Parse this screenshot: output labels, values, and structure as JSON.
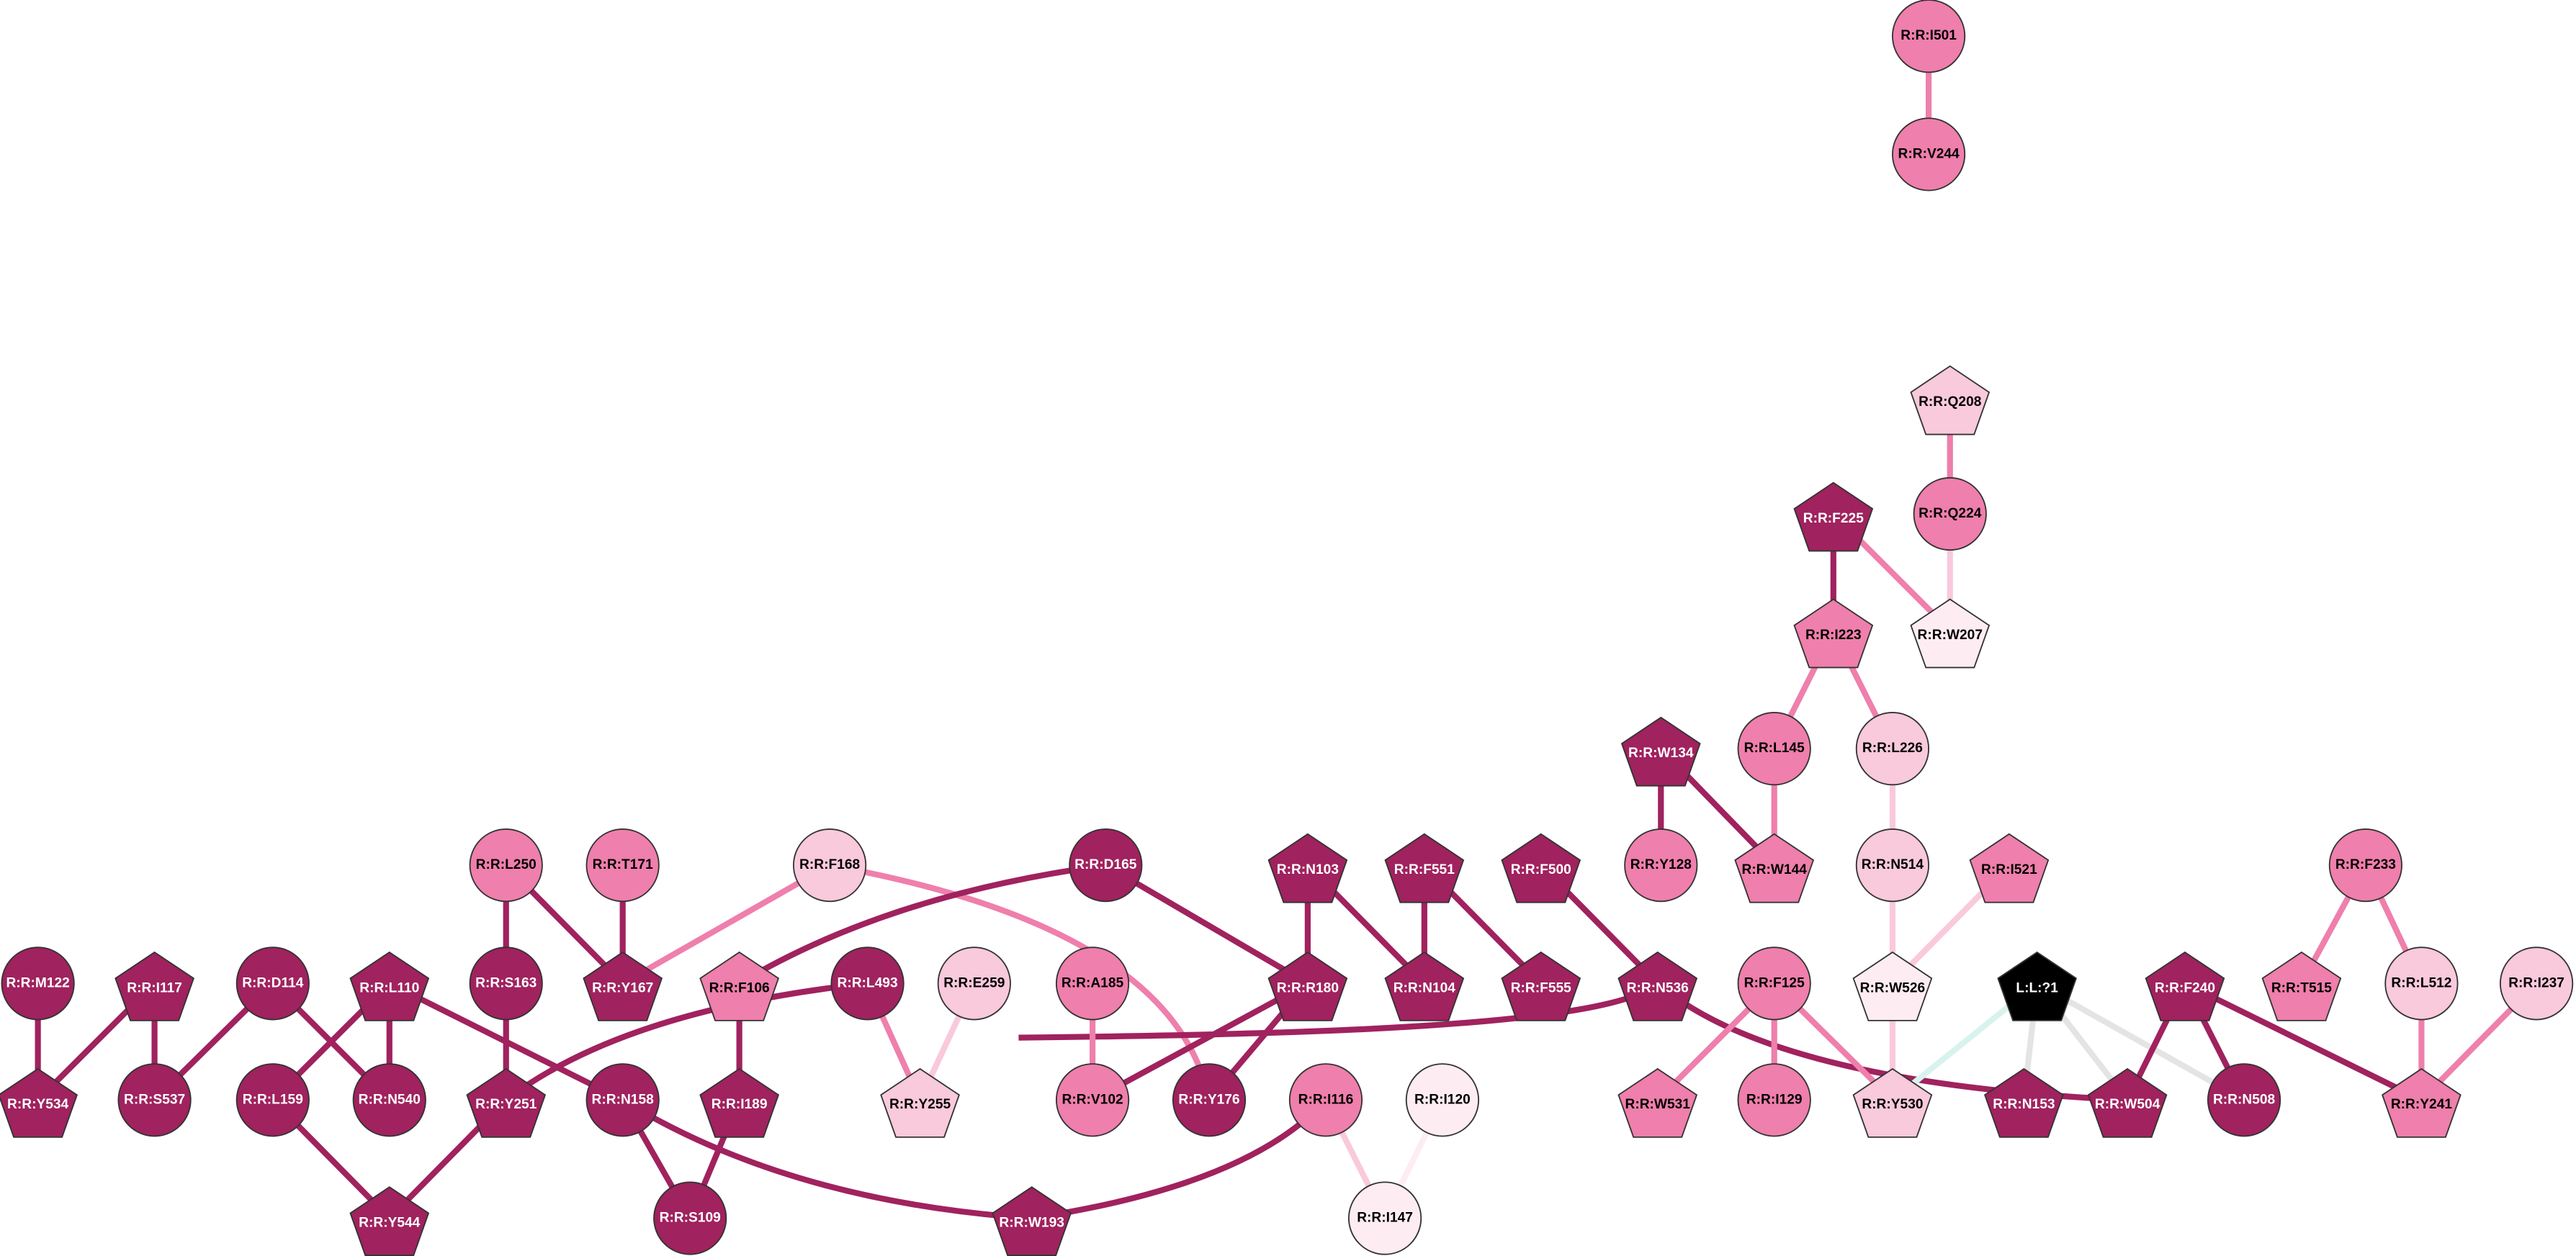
{
  "nodes": [
    "R:R:I501",
    "R:R:V244",
    "R:R:Q208",
    "R:R:Q224",
    "R:R:F225",
    "R:R:W207",
    "R:R:I223",
    "R:R:W134",
    "R:R:L145",
    "R:R:L226",
    "R:R:Y128",
    "R:R:W144",
    "R:R:N514",
    "R:R:I521",
    "R:R:L250",
    "R:R:T171",
    "R:R:F168",
    "R:R:D165",
    "R:R:N103",
    "R:R:F551",
    "R:R:F500",
    "R:R:F233",
    "R:R:M122",
    "R:R:I117",
    "R:R:D114",
    "R:R:L110",
    "R:R:S163",
    "R:R:Y167",
    "R:R:F106",
    "R:R:L493",
    "R:R:E259",
    "R:R:A185",
    "R:R:R180",
    "R:R:N104",
    "R:R:F555",
    "R:R:N536",
    "R:R:F125",
    "R:R:W526",
    "L:L:?1",
    "R:R:F240",
    "R:R:T515",
    "R:R:L512",
    "R:R:I237",
    "R:R:Y534",
    "R:R:S537",
    "R:R:L159",
    "R:R:N540",
    "R:R:Y251",
    "R:R:N158",
    "R:R:I189",
    "R:R:Y255",
    "R:R:V102",
    "R:R:Y176",
    "R:R:I116",
    "R:R:I120",
    "R:R:W531",
    "R:R:I129",
    "R:R:Y530",
    "R:R:N153",
    "R:R:W504",
    "R:R:N508",
    "R:R:Y241",
    "R:R:Y544",
    "R:R:S109",
    "R:R:W193",
    "R:R:I147"
  ]
}
